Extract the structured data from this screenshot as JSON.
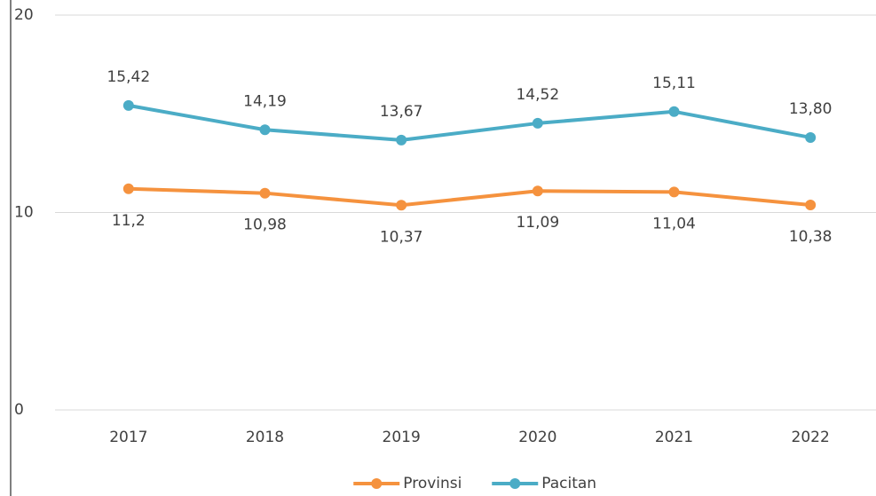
{
  "chart_data": {
    "type": "line",
    "categories": [
      "2017",
      "2018",
      "2019",
      "2020",
      "2021",
      "2022"
    ],
    "series": [
      {
        "name": "Provinsi",
        "color": "#f5923e",
        "values": [
          11.2,
          10.98,
          10.37,
          11.09,
          11.04,
          10.38
        ],
        "value_labels": [
          "11,2",
          "10,98",
          "10,37",
          "11,09",
          "11,04",
          "10,38"
        ]
      },
      {
        "name": "Pacitan",
        "color": "#4bacc6",
        "values": [
          15.42,
          14.19,
          13.67,
          14.52,
          15.11,
          13.8
        ],
        "value_labels": [
          "15,42",
          "14,19",
          "13,67",
          "14,52",
          "15,11",
          "13,80"
        ]
      }
    ],
    "ylim": [
      0,
      20
    ],
    "yticks": [
      0,
      10,
      20
    ],
    "grid": true,
    "legend": "bottom"
  }
}
